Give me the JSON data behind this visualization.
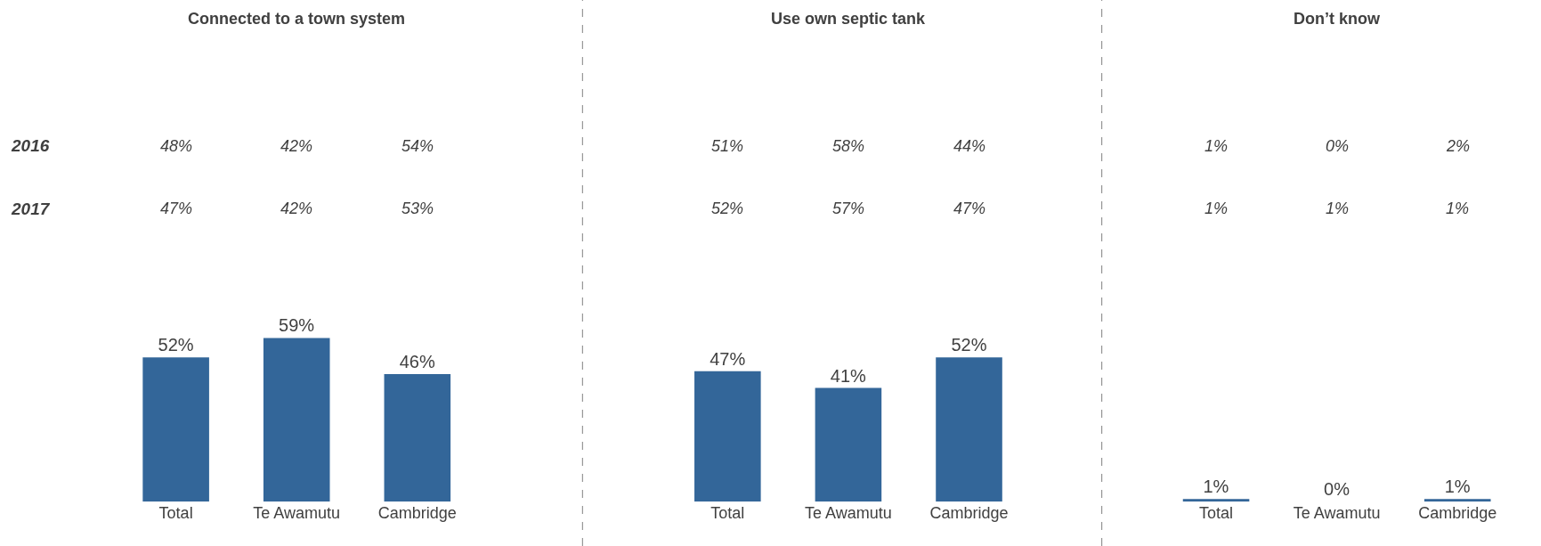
{
  "chart_data": [
    {
      "type": "bar",
      "title": "Connected to a town system",
      "categories": [
        "Total",
        "Te Awamutu",
        "Cambridge"
      ],
      "values": [
        52,
        59,
        46
      ],
      "value_labels": [
        "52%",
        "59%",
        "46%"
      ],
      "color": "#336699",
      "annotations": [
        "2016",
        "48%",
        "42%",
        "54%",
        "2017",
        "47%",
        "42%",
        "53%"
      ]
    },
    {
      "type": "bar",
      "title": "Use own septic tank",
      "categories": [
        "Total",
        "Te Awamutu",
        "Cambridge"
      ],
      "values": [
        47,
        41,
        52
      ],
      "value_labels": [
        "47%",
        "41%",
        "52%"
      ],
      "color": "#336699",
      "annotations": [
        "51%",
        "58%",
        "44%",
        "52%",
        "57%",
        "47%"
      ]
    },
    {
      "type": "bar",
      "title": "Don’t know",
      "categories": [
        "Total",
        "Te Awamutu",
        "Cambridge"
      ],
      "values": [
        1,
        0,
        1
      ],
      "value_labels": [
        "1%",
        "0%",
        "1%"
      ],
      "color": "#336699",
      "annotations": [
        "1%",
        "0%",
        "2%",
        "1%",
        "1%",
        "1%"
      ]
    }
  ]
}
